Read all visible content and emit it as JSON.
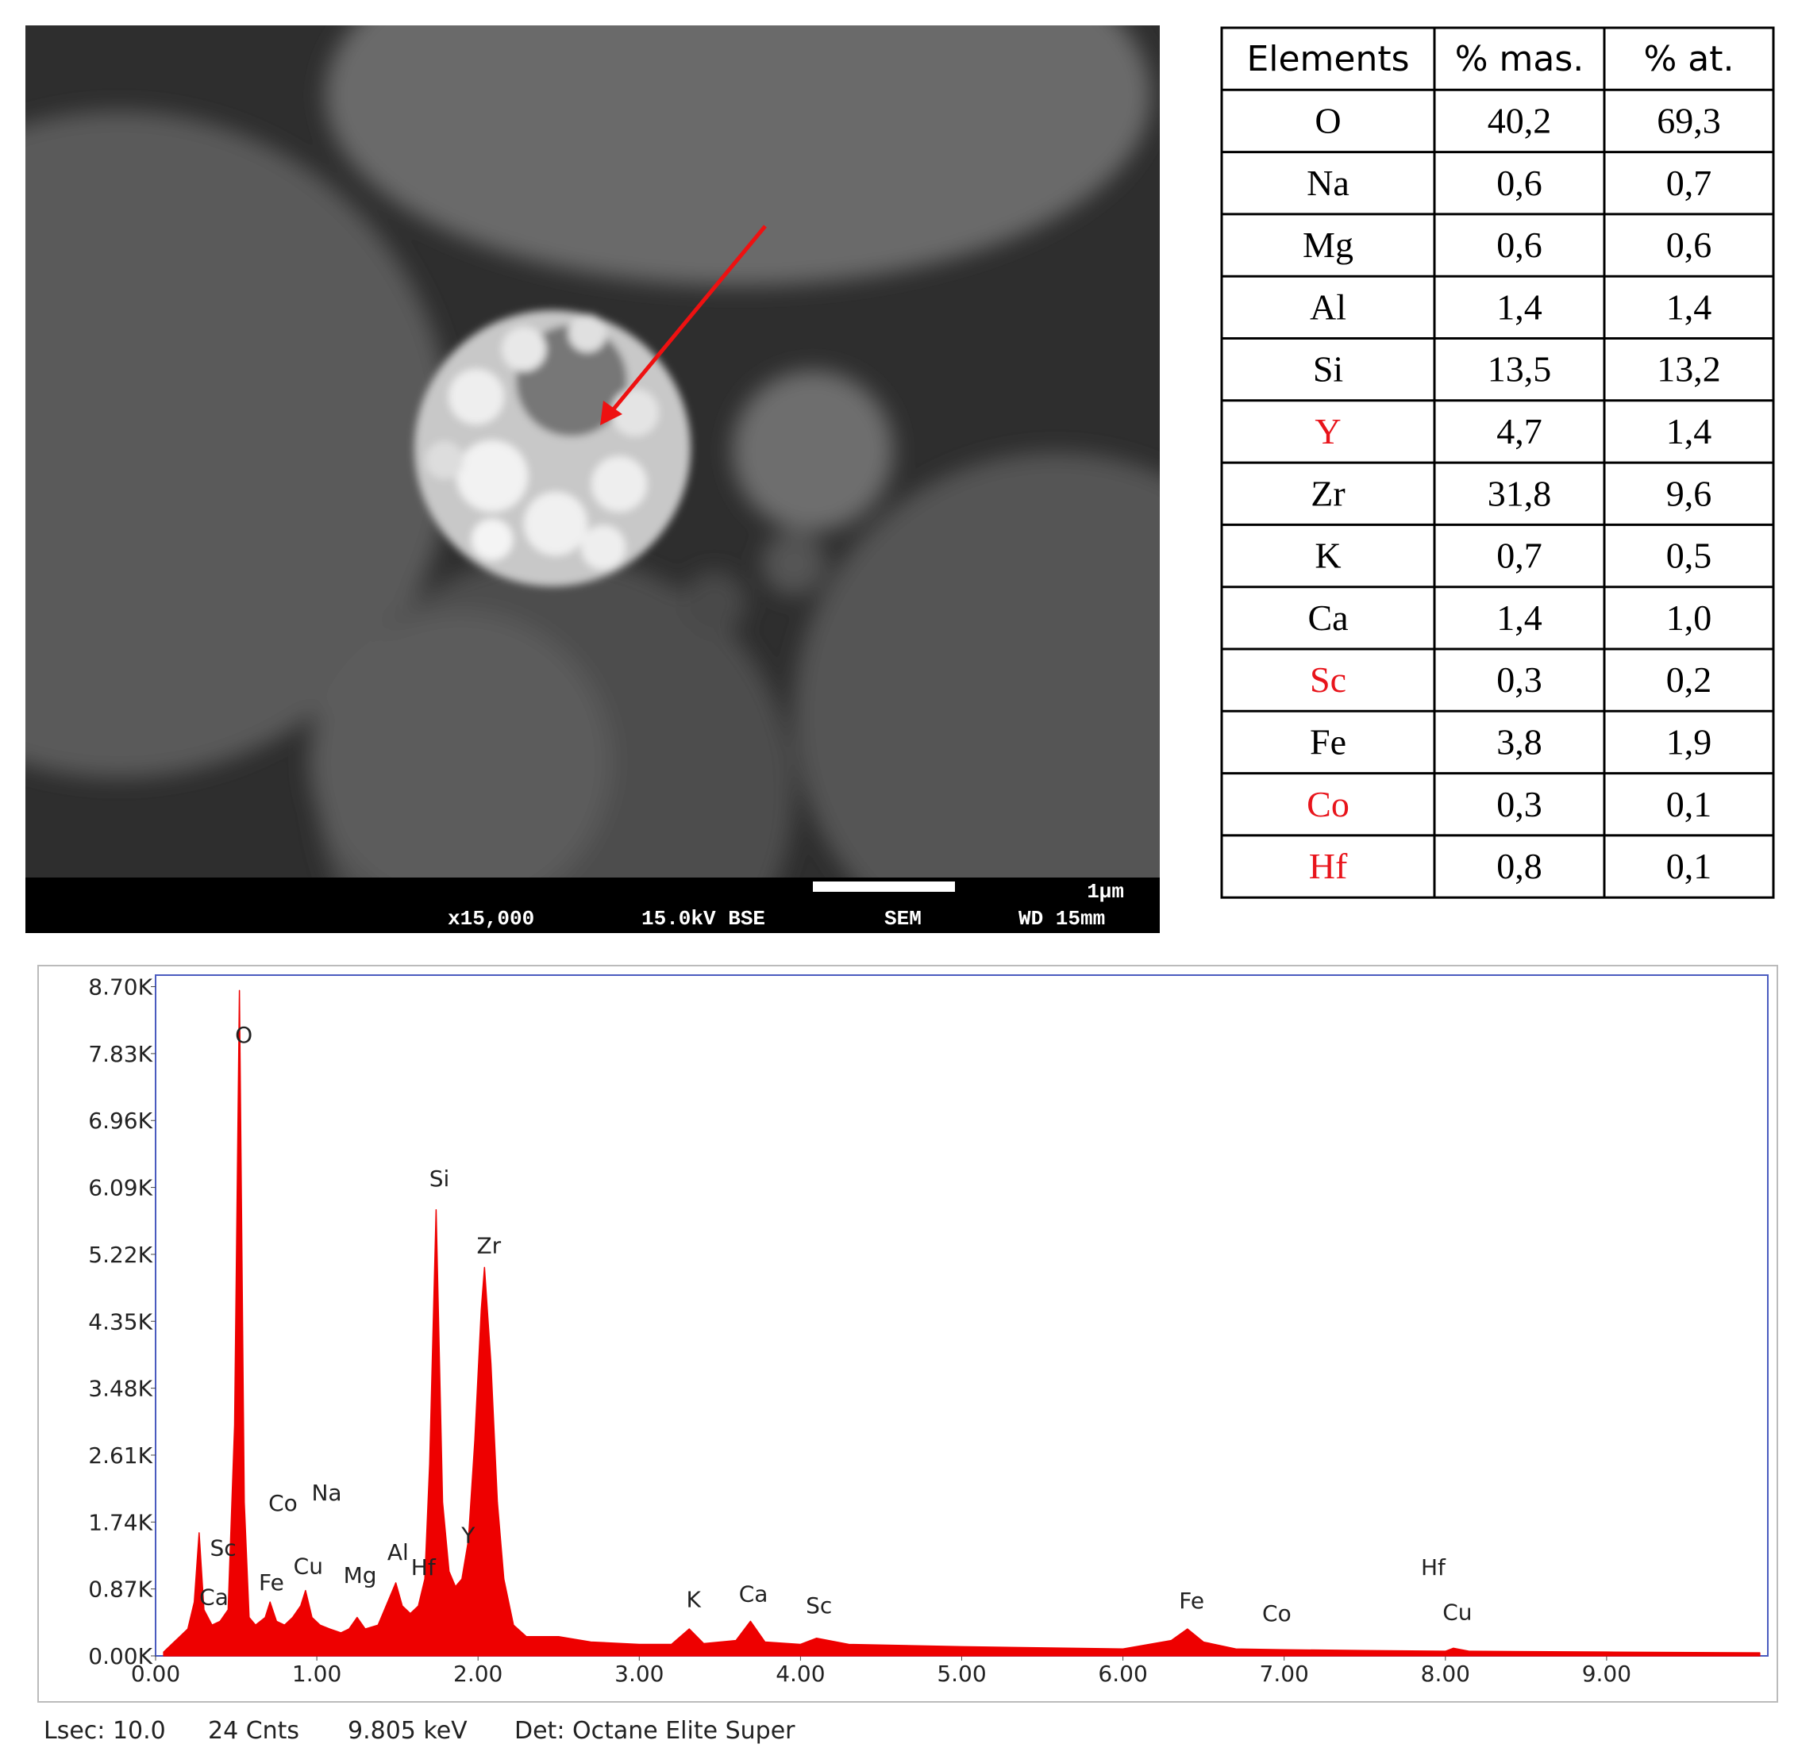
{
  "sem_image": {
    "magnification": "x15,000",
    "voltage": "15.0kV BSE",
    "mode": "SEM",
    "working_distance": "WD 15mm",
    "scale": "1µm"
  },
  "table": {
    "header": [
      "Elements",
      "% mas.",
      "% at."
    ],
    "rows": [
      {
        "cells": [
          "O",
          "40,2",
          "69,3"
        ],
        "color": "#000000"
      },
      {
        "cells": [
          "Na",
          "0,6",
          "0,7"
        ],
        "color": "#000000"
      },
      {
        "cells": [
          "Mg",
          "0,6",
          "0,6"
        ],
        "color": "#000000"
      },
      {
        "cells": [
          "Al",
          "1,4",
          "1,4"
        ],
        "color": "#000000"
      },
      {
        "cells": [
          "Si",
          "13,5",
          "13,2"
        ],
        "color": "#000000"
      },
      {
        "cells": [
          "Y",
          "4,7",
          "1,4"
        ],
        "color": "#e8141b"
      },
      {
        "cells": [
          "Zr",
          "31,8",
          "9,6"
        ],
        "color": "#000000"
      },
      {
        "cells": [
          "K",
          "0,7",
          "0,5"
        ],
        "color": "#000000"
      },
      {
        "cells": [
          "Ca",
          "1,4",
          "1,0"
        ],
        "color": "#000000"
      },
      {
        "cells": [
          "Sc",
          "0,3",
          "0,2"
        ],
        "color": "#e8141b"
      },
      {
        "cells": [
          "Fe",
          "3,8",
          "1,9"
        ],
        "color": "#000000"
      },
      {
        "cells": [
          "Co",
          "0,3",
          "0,1"
        ],
        "color": "#e8141b"
      },
      {
        "cells": [
          "Hf",
          "0,8",
          "0,1"
        ],
        "color": "#e8141b"
      }
    ]
  },
  "chart_data": {
    "type": "area",
    "color": "#ee0000",
    "x": [
      0.05,
      0.1,
      0.15,
      0.2,
      0.24,
      0.27,
      0.3,
      0.35,
      0.4,
      0.45,
      0.49,
      0.52,
      0.55,
      0.58,
      0.62,
      0.68,
      0.71,
      0.75,
      0.8,
      0.85,
      0.9,
      0.93,
      0.97,
      1.02,
      1.08,
      1.15,
      1.2,
      1.25,
      1.3,
      1.38,
      1.45,
      1.49,
      1.53,
      1.58,
      1.63,
      1.67,
      1.7,
      1.74,
      1.78,
      1.82,
      1.86,
      1.9,
      1.94,
      1.98,
      2.02,
      2.04,
      2.08,
      2.12,
      2.16,
      2.22,
      2.3,
      2.5,
      2.7,
      3.0,
      3.2,
      3.31,
      3.4,
      3.6,
      3.69,
      3.78,
      4.0,
      4.1,
      4.3,
      5.0,
      6.0,
      6.3,
      6.4,
      6.5,
      6.7,
      7.0,
      7.5,
      8.0,
      8.05,
      8.15,
      9.0,
      9.95
    ],
    "values": [
      50,
      150,
      250,
      350,
      700,
      1600,
      600,
      400,
      450,
      600,
      3000,
      8650,
      2000,
      500,
      400,
      500,
      700,
      450,
      400,
      500,
      650,
      850,
      500,
      400,
      350,
      300,
      350,
      500,
      350,
      400,
      750,
      950,
      650,
      550,
      650,
      1000,
      2500,
      5800,
      2000,
      1100,
      900,
      1000,
      1500,
      2800,
      4500,
      5050,
      3800,
      2000,
      1000,
      400,
      250,
      250,
      180,
      150,
      150,
      350,
      160,
      200,
      450,
      180,
      150,
      230,
      150,
      120,
      90,
      200,
      350,
      180,
      90,
      80,
      70,
      60,
      100,
      60,
      50,
      40
    ],
    "xlim": [
      0,
      10
    ],
    "ylim": [
      0,
      8850
    ],
    "xticks": [
      {
        "value": 0,
        "label": "0.00"
      },
      {
        "value": 1,
        "label": "1.00"
      },
      {
        "value": 2,
        "label": "2.00"
      },
      {
        "value": 3,
        "label": "3.00"
      },
      {
        "value": 4,
        "label": "4.00"
      },
      {
        "value": 5,
        "label": "5.00"
      },
      {
        "value": 6,
        "label": "6.00"
      },
      {
        "value": 7,
        "label": "7.00"
      },
      {
        "value": 8,
        "label": "8.00"
      },
      {
        "value": 9,
        "label": "9.00"
      }
    ],
    "yticks": [
      {
        "value": 0,
        "label": "0.00K"
      },
      {
        "value": 870,
        "label": "0.87K"
      },
      {
        "value": 1740,
        "label": "1.74K"
      },
      {
        "value": 2610,
        "label": "2.61K"
      },
      {
        "value": 3480,
        "label": "3.48K"
      },
      {
        "value": 4350,
        "label": "4.35K"
      },
      {
        "value": 5220,
        "label": "5.22K"
      },
      {
        "value": 6090,
        "label": "6.09K"
      },
      {
        "value": 6960,
        "label": "6.96K"
      },
      {
        "value": 7830,
        "label": "7.83K"
      },
      {
        "value": 8700,
        "label": "8.70K"
      }
    ],
    "annotations": [
      "O",
      "Si",
      "Zr",
      "Co",
      "Na",
      "Sc",
      "Ca",
      "Fe",
      "Cu",
      "Mg",
      "Al",
      "Hf",
      "Y",
      "K",
      "Ca",
      "Sc",
      "Fe",
      "Co",
      "Hf",
      "Cu"
    ],
    "footer": [
      "Lsec: 10.0",
      "24 Cnts",
      "9.805 keV",
      "Det: Octane Elite Super"
    ]
  }
}
